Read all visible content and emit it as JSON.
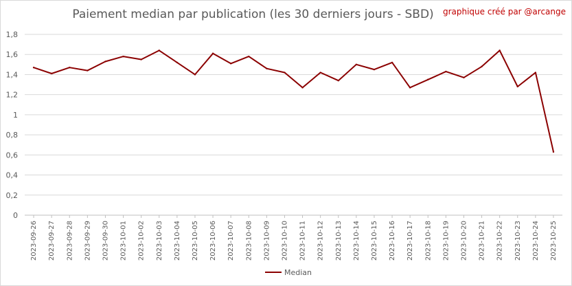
{
  "chart_data": {
    "type": "line",
    "title": "Paiement median par publication (les 30 derniers jours - SBD)",
    "credit": "graphique créé par @arcange",
    "xlabel": "",
    "ylabel": "",
    "ylim": [
      0,
      1.8
    ],
    "ytick_step": 0.2,
    "yticks": [
      "0",
      "0,2",
      "0,4",
      "0,6",
      "0,8",
      "1",
      "1,2",
      "1,4",
      "1,6",
      "1,8"
    ],
    "grid": true,
    "legend_position": "bottom",
    "x": [
      "2023-09-26",
      "2023-09-27",
      "2023-09-28",
      "2023-09-29",
      "2023-09-30",
      "2023-10-01",
      "2023-10-02",
      "2023-10-03",
      "2023-10-04",
      "2023-10-05",
      "2023-10-06",
      "2023-10-07",
      "2023-10-08",
      "2023-10-09",
      "2023-10-10",
      "2023-10-11",
      "2023-10-12",
      "2023-10-13",
      "2023-10-14",
      "2023-10-15",
      "2023-10-16",
      "2023-10-17",
      "2023-10-18",
      "2023-10-19",
      "2023-10-20",
      "2023-10-21",
      "2023-10-22",
      "2023-10-23",
      "2023-10-24",
      "2023-10-25"
    ],
    "series": [
      {
        "name": "Median",
        "color": "#8b0000",
        "values": [
          1.47,
          1.41,
          1.47,
          1.44,
          1.53,
          1.58,
          1.55,
          1.64,
          1.52,
          1.4,
          1.61,
          1.51,
          1.58,
          1.46,
          1.42,
          1.27,
          1.42,
          1.34,
          1.5,
          1.45,
          1.52,
          1.27,
          1.35,
          1.43,
          1.37,
          1.48,
          1.64,
          1.28,
          1.42,
          0.63
        ]
      }
    ]
  }
}
